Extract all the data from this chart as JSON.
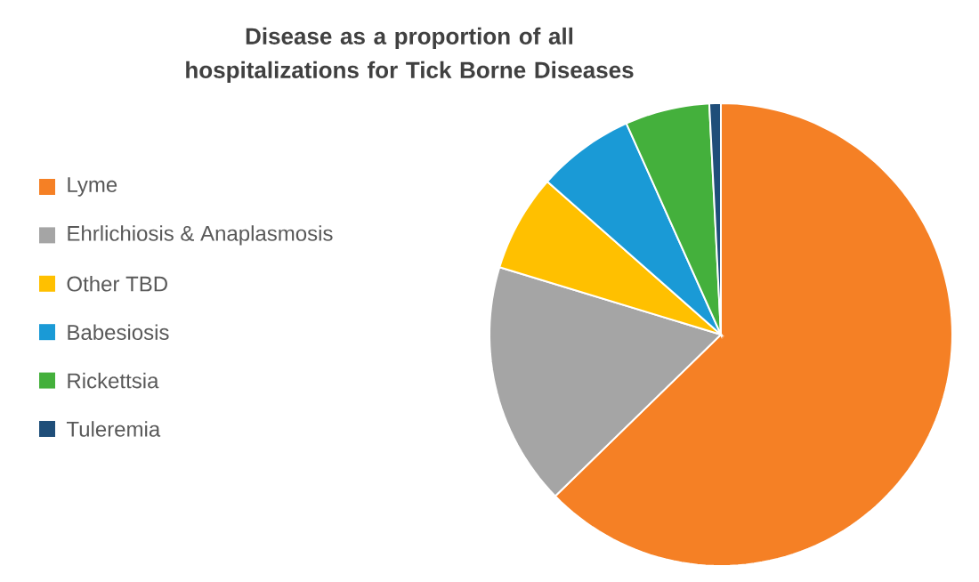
{
  "chart_data": {
    "type": "pie",
    "title": "Disease as a proportion of all hospitalizations for Tick Borne Diseases",
    "categories": [
      "Lyme",
      "Ehrlichiosis & Anaplasmosis",
      "Other TBD",
      "Babesiosis",
      "Rickettsia",
      "Tuleremia"
    ],
    "values": [
      62.7,
      17.0,
      6.8,
      6.8,
      5.9,
      0.8
    ],
    "colors": [
      "#f58025",
      "#a5a5a5",
      "#ffc000",
      "#1a9ad6",
      "#44b03c",
      "#1f4e79"
    ],
    "legend": "left"
  }
}
